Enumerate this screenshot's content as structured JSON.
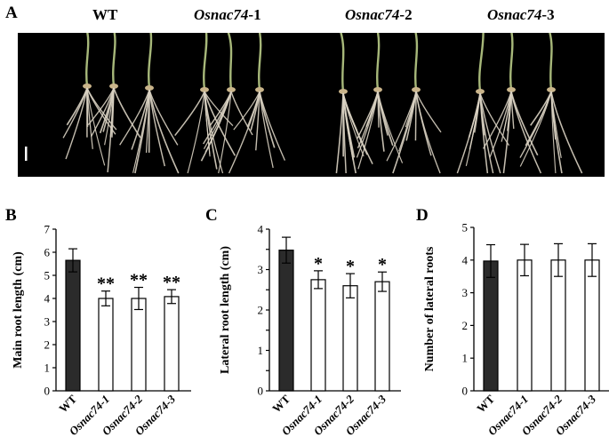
{
  "panels": {
    "A": "A",
    "B": "B",
    "C": "C",
    "D": "D"
  },
  "photo": {
    "labels": [
      {
        "gene": "WT",
        "suffix": ""
      },
      {
        "gene": "Osnac74",
        "suffix": "-1"
      },
      {
        "gene": "Osnac74",
        "suffix": "-2"
      },
      {
        "gene": "Osnac74",
        "suffix": "-3"
      }
    ]
  },
  "colors": {
    "wt_bar": "#2b2b2b",
    "mutant_bar": "#ffffff",
    "photo_bg": "#000000",
    "root": "#d9d2c2",
    "shoot": "#a7b87a"
  },
  "chart_data": [
    {
      "type": "bar",
      "panel": "B",
      "ylabel": "Main root length (cm)",
      "categories": [
        "WT",
        "Osnac74-1",
        "Osnac74-2",
        "Osnac74-3"
      ],
      "values": [
        5.65,
        4.0,
        4.0,
        4.08
      ],
      "errors": [
        0.5,
        0.32,
        0.48,
        0.3
      ],
      "significance": [
        "",
        "**",
        "**",
        "**"
      ],
      "ylim": [
        0,
        7
      ],
      "yticks": [
        0,
        1,
        2,
        3,
        4,
        5,
        6,
        7
      ]
    },
    {
      "type": "bar",
      "panel": "C",
      "ylabel": "Lateral root length (cm)",
      "categories": [
        "WT",
        "Osnac74-1",
        "Osnac74-2",
        "Osnac74-3"
      ],
      "values": [
        3.48,
        2.75,
        2.6,
        2.7
      ],
      "errors": [
        0.32,
        0.22,
        0.3,
        0.24
      ],
      "significance": [
        "",
        "*",
        "*",
        "*"
      ],
      "ylim": [
        0,
        4
      ],
      "yticks": [
        0,
        0.5,
        1,
        1.5,
        2,
        2.5,
        3,
        3.5,
        4
      ],
      "ytick_labels": [
        "0",
        "",
        "1",
        "",
        "2",
        "",
        "3",
        "",
        "4"
      ]
    },
    {
      "type": "bar",
      "panel": "D",
      "ylabel": "Number of lateral roots",
      "categories": [
        "WT",
        "Osnac74-1",
        "Osnac74-2",
        "Osnac74-3"
      ],
      "values": [
        3.97,
        4.0,
        4.0,
        4.0
      ],
      "errors": [
        0.5,
        0.48,
        0.5,
        0.5
      ],
      "significance": [
        "",
        "",
        "",
        ""
      ],
      "ylim": [
        0,
        5
      ],
      "yticks": [
        0,
        1,
        2,
        3,
        4,
        5
      ]
    }
  ]
}
